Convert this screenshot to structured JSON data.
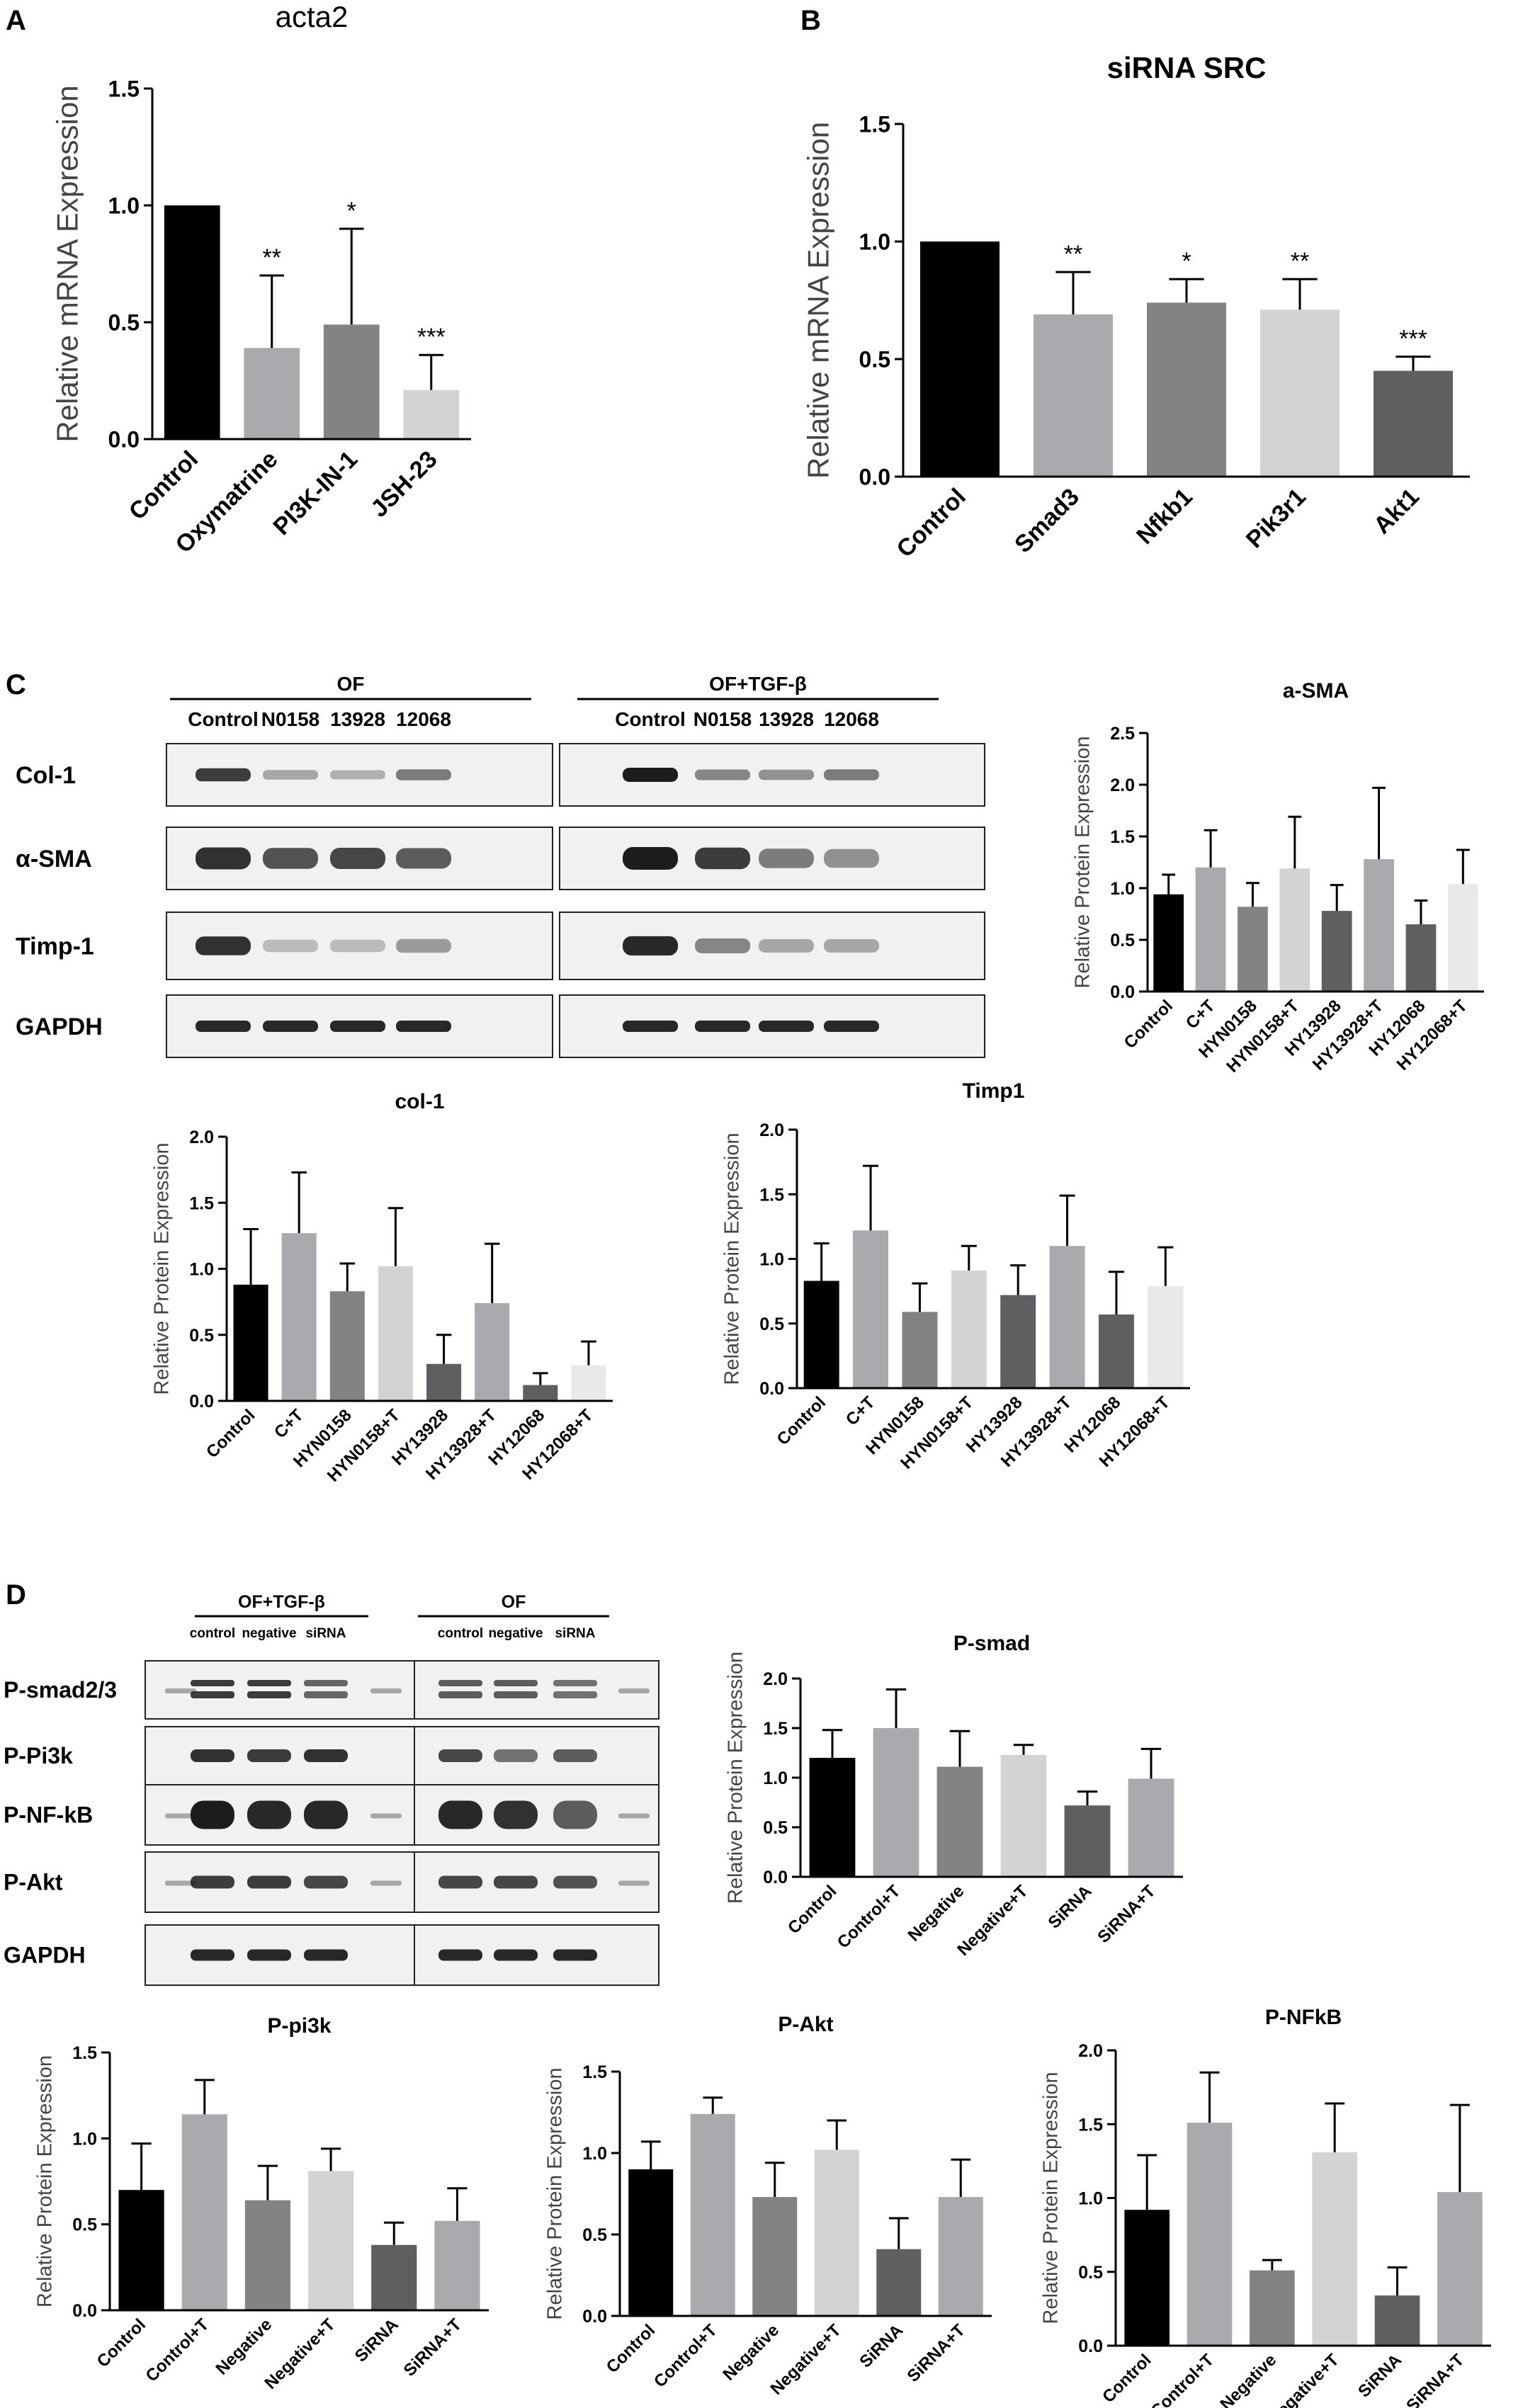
{
  "panels": [
    {
      "id": "A",
      "label": "A"
    },
    {
      "id": "B",
      "label": "B"
    },
    {
      "id": "C",
      "label": "C"
    },
    {
      "id": "D",
      "label": "D"
    }
  ],
  "colors": {
    "black": "#000000",
    "gray1": "#a9a9ae",
    "gray2": "#838385",
    "gray3": "#d3d3d5",
    "gray4": "#5f5f61",
    "light": "#e9e9eb",
    "blot_bg": "#f1f1f1",
    "band": "#1c1c1c"
  },
  "blots": [
    {
      "panel": "C",
      "groups": [
        {
          "title": "OF",
          "lanes": [
            "Control",
            "N0158",
            "13928",
            "12068"
          ]
        },
        {
          "title": "OF+TGF-β",
          "lanes": [
            "Control",
            "N0158",
            "13928",
            "12068"
          ]
        }
      ],
      "rows": [
        "Col-1",
        "α-SMA",
        "Timp-1",
        "GAPDH"
      ]
    },
    {
      "panel": "D",
      "groups": [
        {
          "title": "OF+TGF-β",
          "lanes": [
            "control",
            "negative",
            "siRNA"
          ]
        },
        {
          "title": "OF",
          "lanes": [
            "control",
            "negative",
            "siRNA"
          ]
        }
      ],
      "rows": [
        "P-smad2/3",
        "P-Pi3k",
        "P-NF-kB",
        "P-Akt",
        "GAPDH"
      ]
    }
  ],
  "chart_data": [
    {
      "panel": "A",
      "type": "bar",
      "title": "acta2",
      "ylabel": "Relative mRNA Expression",
      "ylim": [
        0,
        1.5
      ],
      "yticks": [
        "0.0",
        "0.5",
        "1.0",
        "1.5"
      ],
      "categories": [
        "Control",
        "Oxymatrine",
        "PI3K-IN-1",
        "JSH-23"
      ],
      "values": [
        1.0,
        0.39,
        0.49,
        0.21
      ],
      "errors": [
        0,
        0.31,
        0.41,
        0.15
      ],
      "significance": [
        "",
        "**",
        "*",
        "***"
      ],
      "colors": [
        "#000000",
        "#a9a9ae",
        "#838385",
        "#d3d3d5"
      ]
    },
    {
      "panel": "B",
      "type": "bar",
      "title": "siRNA SRC",
      "ylabel": "Relative mRNA Expression",
      "ylim": [
        0,
        1.5
      ],
      "yticks": [
        "0.0",
        "0.5",
        "1.0",
        "1.5"
      ],
      "categories": [
        "Control",
        "Smad3",
        "Nfkb1",
        "Pik3r1",
        "Akt1"
      ],
      "values": [
        1.0,
        0.69,
        0.74,
        0.71,
        0.45
      ],
      "errors": [
        0,
        0.18,
        0.1,
        0.13,
        0.06
      ],
      "significance": [
        "",
        "**",
        "*",
        "**",
        "***"
      ],
      "colors": [
        "#000000",
        "#a9a9ae",
        "#838385",
        "#d3d3d5",
        "#5f5f61"
      ]
    },
    {
      "panel": "C",
      "type": "bar",
      "title": "a-SMA",
      "ylabel": "Relative  Protein Expression",
      "ylim": [
        0,
        2.5
      ],
      "yticks": [
        "0.0",
        "0.5",
        "1.0",
        "1.5",
        "2.0",
        "2.5"
      ],
      "categories": [
        "Control",
        "C+T",
        "HYN0158",
        "HYN0158+T",
        "HY13928",
        "HY13928+T",
        "HY12068",
        "HY12068+T"
      ],
      "values": [
        0.94,
        1.2,
        0.82,
        1.19,
        0.78,
        1.28,
        0.65,
        1.04
      ],
      "errors": [
        0.19,
        0.36,
        0.23,
        0.5,
        0.25,
        0.69,
        0.23,
        0.33
      ],
      "colors": [
        "#000000",
        "#a9a9ae",
        "#838385",
        "#d3d3d5",
        "#5f5f61",
        "#a9a9ae",
        "#5f5f61",
        "#e9e9eb"
      ]
    },
    {
      "panel": "C",
      "type": "bar",
      "title": "col-1",
      "ylabel": "Relative  Protein Expression",
      "ylim": [
        0,
        2.0
      ],
      "yticks": [
        "0.0",
        "0.5",
        "1.0",
        "1.5",
        "2.0"
      ],
      "categories": [
        "Control",
        "C+T",
        "HYN0158",
        "HYN0158+T",
        "HY13928",
        "HY13928+T",
        "HY12068",
        "HY12068+T"
      ],
      "values": [
        0.88,
        1.27,
        0.83,
        1.02,
        0.28,
        0.74,
        0.12,
        0.27
      ],
      "errors": [
        0.42,
        0.46,
        0.21,
        0.44,
        0.22,
        0.45,
        0.09,
        0.18
      ],
      "colors": [
        "#000000",
        "#a9a9ae",
        "#838385",
        "#d3d3d5",
        "#5f5f61",
        "#a9a9ae",
        "#5f5f61",
        "#e9e9eb"
      ]
    },
    {
      "panel": "C",
      "type": "bar",
      "title": "Timp1",
      "ylabel": "Relative  Protein Expression",
      "ylim": [
        0,
        2.0
      ],
      "yticks": [
        "0.0",
        "0.5",
        "1.0",
        "1.5",
        "2.0"
      ],
      "categories": [
        "Control",
        "C+T",
        "HYN0158",
        "HYN0158+T",
        "HY13928",
        "HY13928+T",
        "HY12068",
        "HY12068+T"
      ],
      "values": [
        0.83,
        1.22,
        0.59,
        0.91,
        0.72,
        1.1,
        0.57,
        0.79
      ],
      "errors": [
        0.29,
        0.5,
        0.22,
        0.19,
        0.23,
        0.39,
        0.33,
        0.3
      ],
      "colors": [
        "#000000",
        "#a9a9ae",
        "#838385",
        "#d3d3d5",
        "#5f5f61",
        "#a9a9ae",
        "#5f5f61",
        "#e9e9eb"
      ]
    },
    {
      "panel": "D",
      "type": "bar",
      "title": "P-smad",
      "ylabel": "Relative  Protein Expression",
      "ylim": [
        0,
        2.0
      ],
      "yticks": [
        "0.0",
        "0.5",
        "1.0",
        "1.5",
        "2.0"
      ],
      "categories": [
        "Control",
        "Control+T",
        "Negative",
        "Negative+T",
        "SiRNA",
        "SiRNA+T"
      ],
      "values": [
        1.2,
        1.5,
        1.11,
        1.23,
        0.72,
        0.99
      ],
      "errors": [
        0.28,
        0.39,
        0.36,
        0.1,
        0.14,
        0.3
      ],
      "colors": [
        "#000000",
        "#a9a9ae",
        "#838385",
        "#d3d3d5",
        "#5f5f61",
        "#a9a9ae"
      ]
    },
    {
      "panel": "D",
      "type": "bar",
      "title": "P-pi3k",
      "ylabel": "Relative  Protein Expression",
      "ylim": [
        0,
        1.5
      ],
      "yticks": [
        "0.0",
        "0.5",
        "1.0",
        "1.5"
      ],
      "categories": [
        "Control",
        "Control+T",
        "Negative",
        "Negative+T",
        "SiRNA",
        "SiRNA+T"
      ],
      "values": [
        0.7,
        1.14,
        0.64,
        0.81,
        0.38,
        0.52
      ],
      "errors": [
        0.27,
        0.2,
        0.2,
        0.13,
        0.13,
        0.19
      ],
      "colors": [
        "#000000",
        "#a9a9ae",
        "#838385",
        "#d3d3d5",
        "#5f5f61",
        "#a9a9ae"
      ]
    },
    {
      "panel": "D",
      "type": "bar",
      "title": "P-Akt",
      "ylabel": "Relative  Protein Expression",
      "ylim": [
        0,
        1.5
      ],
      "yticks": [
        "0.0",
        "0.5",
        "1.0",
        "1.5"
      ],
      "categories": [
        "Control",
        "Control+T",
        "Negative",
        "Negative+T",
        "SiRNA",
        "SiRNA+T"
      ],
      "values": [
        0.9,
        1.24,
        0.73,
        1.02,
        0.41,
        0.73
      ],
      "errors": [
        0.17,
        0.1,
        0.21,
        0.18,
        0.19,
        0.23
      ],
      "colors": [
        "#000000",
        "#a9a9ae",
        "#838385",
        "#d3d3d5",
        "#5f5f61",
        "#a9a9ae"
      ]
    },
    {
      "panel": "D",
      "type": "bar",
      "title": "P-NFkB",
      "ylabel": "Relative  Protein Expression",
      "ylim": [
        0,
        2.0
      ],
      "yticks": [
        "0.0",
        "0.5",
        "1.0",
        "1.5",
        "2.0"
      ],
      "categories": [
        "Control",
        "Control+T",
        "Negative",
        "Negative+T",
        "SiRNA",
        "SiRNA+T"
      ],
      "values": [
        0.92,
        1.51,
        0.51,
        1.31,
        0.34,
        1.04
      ],
      "errors": [
        0.37,
        0.34,
        0.07,
        0.33,
        0.19,
        0.59
      ],
      "colors": [
        "#000000",
        "#a9a9ae",
        "#838385",
        "#d3d3d5",
        "#5f5f61",
        "#a9a9ae"
      ]
    }
  ]
}
